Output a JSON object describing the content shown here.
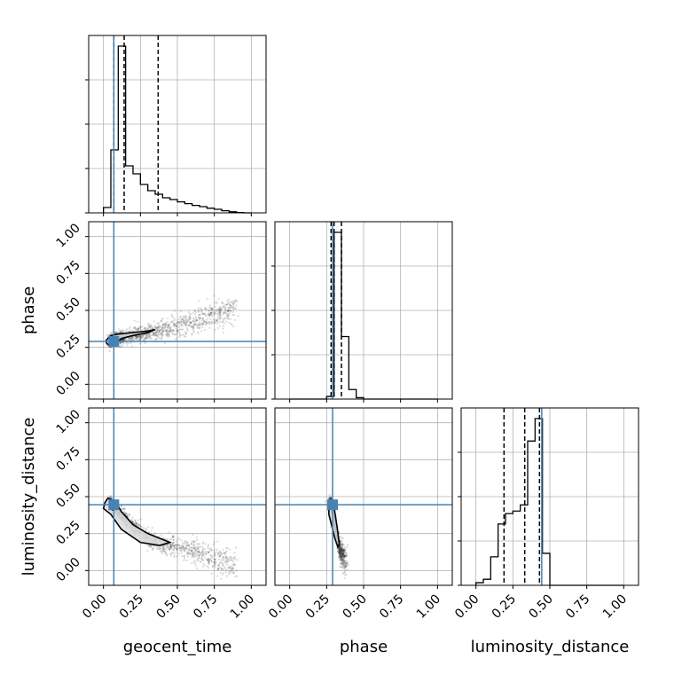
{
  "chart_data": {
    "type": "corner",
    "parameters": [
      "geocent_time",
      "phase",
      "luminosity_distance"
    ],
    "axis_labels": {
      "geocent_time": "geocent_time",
      "phase": "phase",
      "luminosity_distance": "luminosity_distance"
    },
    "range": [
      -0.1,
      1.1
    ],
    "ticks": [
      0.0,
      0.25,
      0.5,
      0.75,
      1.0
    ],
    "tick_labels": [
      "0.00",
      "0.25",
      "0.50",
      "0.75",
      "1.00"
    ],
    "grid": true,
    "truth_color": "#4682b4",
    "truths": {
      "geocent_time": 0.07,
      "phase": 0.29,
      "luminosity_distance": 0.445
    },
    "quantiles": {
      "geocent_time": [
        0.07,
        0.14,
        0.37
      ],
      "phase": [
        0.28,
        0.3,
        0.35
      ],
      "luminosity_distance": [
        0.19,
        0.33,
        0.43
      ]
    },
    "histograms": {
      "geocent_time": {
        "edges": [
          0.0,
          0.05,
          0.1,
          0.15,
          0.2,
          0.25,
          0.3,
          0.35,
          0.4,
          0.45,
          0.5,
          0.55,
          0.6,
          0.65,
          0.7,
          0.75,
          0.8,
          0.85,
          0.9,
          0.95,
          1.0
        ],
        "counts": [
          0.03,
          0.355,
          0.94,
          0.265,
          0.22,
          0.16,
          0.125,
          0.105,
          0.085,
          0.075,
          0.062,
          0.052,
          0.042,
          0.035,
          0.026,
          0.02,
          0.012,
          0.006,
          0.002,
          0.0
        ]
      },
      "phase": {
        "edges": [
          0.0,
          0.05,
          0.1,
          0.15,
          0.2,
          0.25,
          0.3,
          0.35,
          0.4,
          0.45,
          0.5,
          0.55,
          0.6,
          0.65,
          0.7,
          0.75,
          0.8,
          0.85,
          0.9,
          0.95,
          1.0
        ],
        "counts": [
          0,
          0,
          0,
          0,
          0,
          0.015,
          0.96,
          0.36,
          0.055,
          0.008,
          0.0,
          0,
          0,
          0,
          0,
          0,
          0,
          0,
          0,
          0
        ]
      },
      "luminosity_distance": {
        "edges": [
          0.0,
          0.05,
          0.1,
          0.15,
          0.2,
          0.25,
          0.3,
          0.35,
          0.4,
          0.45,
          0.5,
          0.55,
          0.6,
          0.65,
          0.7,
          0.75,
          0.8,
          0.85,
          0.9,
          0.95,
          1.0
        ],
        "counts": [
          0.015,
          0.035,
          0.165,
          0.355,
          0.415,
          0.43,
          0.465,
          0.835,
          0.965,
          0.185,
          0.0,
          0,
          0,
          0,
          0,
          0,
          0,
          0,
          0,
          0
        ]
      }
    },
    "scatter_2d": {
      "phase_vs_geocent_time": {
        "trend_x": [
          0.05,
          0.1,
          0.2,
          0.3,
          0.4,
          0.5,
          0.6,
          0.7,
          0.8,
          0.9
        ],
        "trend_y": [
          0.3,
          0.31,
          0.33,
          0.345,
          0.37,
          0.395,
          0.42,
          0.45,
          0.485,
          0.52
        ],
        "contours": [
          [
            [
              0.02,
              0.3
            ],
            [
              0.05,
              0.33
            ],
            [
              0.1,
              0.34
            ],
            [
              0.2,
              0.35
            ],
            [
              0.3,
              0.36
            ],
            [
              0.35,
              0.37
            ],
            [
              0.3,
              0.35
            ],
            [
              0.2,
              0.33
            ],
            [
              0.12,
              0.31
            ],
            [
              0.08,
              0.27
            ],
            [
              0.04,
              0.26
            ],
            [
              0.02,
              0.28
            ]
          ],
          [
            [
              0.05,
              0.31
            ],
            [
              0.07,
              0.31
            ],
            [
              0.07,
              0.28
            ],
            [
              0.05,
              0.28
            ]
          ]
        ]
      },
      "luminosity_distance_vs_geocent_time": {
        "trend_x": [
          0.05,
          0.1,
          0.2,
          0.3,
          0.4,
          0.5,
          0.6,
          0.7,
          0.8,
          0.9
        ],
        "trend_y": [
          0.45,
          0.4,
          0.3,
          0.22,
          0.18,
          0.16,
          0.13,
          0.1,
          0.07,
          0.04
        ],
        "contours": [
          [
            [
              0.01,
              0.46
            ],
            [
              0.03,
              0.49
            ],
            [
              0.08,
              0.47
            ],
            [
              0.12,
              0.4
            ],
            [
              0.2,
              0.31
            ],
            [
              0.3,
              0.25
            ],
            [
              0.45,
              0.19
            ],
            [
              0.38,
              0.17
            ],
            [
              0.25,
              0.19
            ],
            [
              0.12,
              0.28
            ],
            [
              0.05,
              0.38
            ],
            [
              0.0,
              0.42
            ]
          ],
          [
            [
              0.05,
              0.45
            ],
            [
              0.08,
              0.46
            ],
            [
              0.09,
              0.42
            ],
            [
              0.06,
              0.41
            ]
          ]
        ]
      },
      "luminosity_distance_vs_phase": {
        "trend_x": [
          0.28,
          0.29,
          0.3,
          0.31,
          0.32,
          0.33,
          0.34,
          0.36,
          0.38
        ],
        "trend_y": [
          0.45,
          0.4,
          0.34,
          0.28,
          0.22,
          0.18,
          0.14,
          0.1,
          0.07
        ],
        "contours": [
          [
            [
              0.265,
              0.44
            ],
            [
              0.28,
              0.47
            ],
            [
              0.3,
              0.43
            ],
            [
              0.32,
              0.3
            ],
            [
              0.335,
              0.18
            ],
            [
              0.325,
              0.16
            ],
            [
              0.305,
              0.22
            ],
            [
              0.28,
              0.32
            ],
            [
              0.265,
              0.38
            ]
          ],
          [
            [
              0.275,
              0.45
            ],
            [
              0.285,
              0.46
            ],
            [
              0.29,
              0.43
            ],
            [
              0.28,
              0.42
            ]
          ]
        ]
      }
    }
  }
}
